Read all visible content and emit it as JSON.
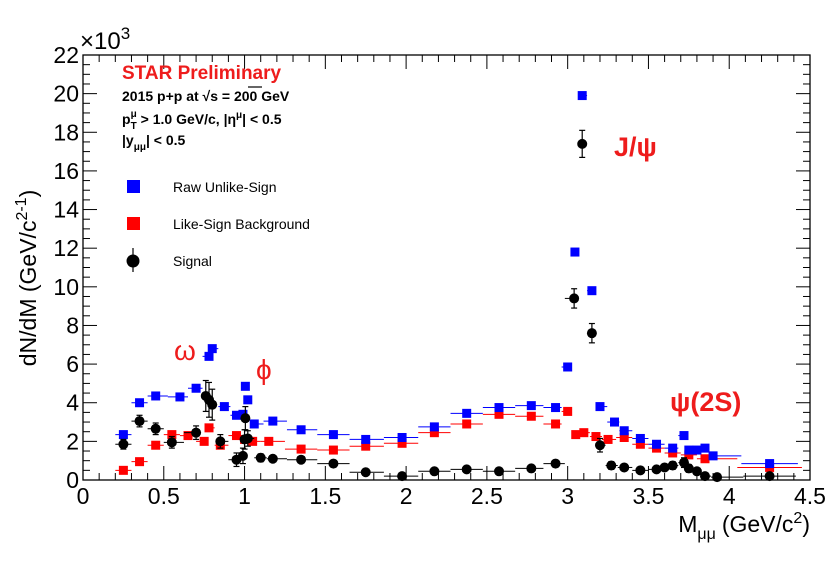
{
  "chart_data": {
    "type": "scatter",
    "xlabel_main": "M",
    "xlabel_sub": "μμ",
    "xlabel_unit": "(GeV/c",
    "xlabel_sup": "2",
    "xlabel_close": ")",
    "ylabel_main": "dN/dM (GeV/c",
    "ylabel_sup": "2",
    "ylabel_exp": "-1",
    "ylabel_close": ")",
    "y_multiplier_base": "×10",
    "y_multiplier_exp": "3",
    "xlim": [
      0,
      4.5
    ],
    "ylim": [
      0,
      22
    ],
    "x_ticks": [
      "0",
      "0.5",
      "1",
      "1.5",
      "2",
      "2.5",
      "3",
      "3.5",
      "4",
      "4.5"
    ],
    "y_ticks": [
      "0",
      "2",
      "4",
      "6",
      "8",
      "10",
      "12",
      "14",
      "16",
      "18",
      "20",
      "22"
    ],
    "annotations": {
      "preliminary": "STAR Preliminary",
      "collision_a": "2015 p+p at ",
      "collision_sqrt": "√s",
      "collision_b": " = 200 GeV",
      "pt_p": "p",
      "pt_sub": "T",
      "pt_sup": "μ",
      "pt_cut": " > 1.0 GeV/c, |η",
      "pt_eta_sup": "μ",
      "pt_cut_end": "| < 0.5",
      "y_open": "|y",
      "y_sub": "μμ",
      "y_cut": "| < 0.5",
      "jpsi": "J/ψ",
      "omega": "ω",
      "phi": "ϕ",
      "psi2s": "ψ(2S)"
    },
    "colors": {
      "raw": "#0000ff",
      "bkg": "#ff0000",
      "signal": "#000000",
      "label": "#ee1c1c"
    },
    "legend_position": "top-left",
    "series": [
      {
        "name": "Raw Unlike-Sign",
        "marker": "square",
        "color": "#0000ff",
        "x": [
          0.25,
          0.35,
          0.45,
          0.6,
          0.7,
          0.78,
          0.8,
          0.875,
          0.95,
          0.99,
          1.005,
          1.02,
          1.06,
          1.175,
          1.35,
          1.55,
          1.75,
          1.975,
          2.175,
          2.375,
          2.575,
          2.775,
          2.925,
          3.0,
          3.045,
          3.09,
          3.15,
          3.2,
          3.29,
          3.35,
          3.45,
          3.55,
          3.65,
          3.72,
          3.75,
          3.8,
          3.85,
          3.9,
          4.25
        ],
        "y": [
          2.35,
          4.0,
          4.35,
          4.3,
          4.75,
          6.4,
          6.8,
          3.8,
          3.35,
          3.4,
          4.85,
          4.15,
          2.9,
          3.05,
          2.6,
          2.35,
          2.1,
          2.2,
          2.75,
          3.45,
          3.75,
          3.85,
          3.75,
          5.85,
          11.8,
          19.9,
          9.8,
          3.8,
          3.0,
          2.55,
          2.15,
          1.85,
          1.65,
          2.3,
          1.55,
          1.55,
          1.65,
          1.25,
          0.85
        ]
      },
      {
        "name": "Like-Sign Background",
        "marker": "square",
        "color": "#ff0000",
        "x": [
          0.25,
          0.35,
          0.45,
          0.55,
          0.65,
          0.75,
          0.78,
          0.85,
          0.95,
          1.0,
          1.05,
          1.15,
          1.35,
          1.55,
          1.75,
          1.975,
          2.175,
          2.375,
          2.575,
          2.775,
          2.925,
          3.0,
          3.05,
          3.1,
          3.175,
          3.25,
          3.35,
          3.45,
          3.55,
          3.65,
          3.75,
          3.85,
          4.25
        ],
        "y": [
          0.5,
          0.95,
          1.8,
          2.35,
          2.3,
          2.0,
          2.7,
          1.8,
          2.3,
          2.1,
          2.0,
          2.0,
          1.6,
          1.55,
          1.75,
          1.9,
          2.45,
          2.9,
          3.4,
          3.3,
          2.9,
          3.55,
          2.35,
          2.45,
          2.25,
          2.1,
          2.2,
          1.85,
          1.65,
          1.4,
          1.3,
          1.1,
          0.65
        ]
      },
      {
        "name": "Signal",
        "marker": "circle",
        "color": "#000000",
        "x": [
          0.25,
          0.35,
          0.45,
          0.55,
          0.7,
          0.76,
          0.78,
          0.8,
          0.85,
          0.95,
          0.99,
          1.0,
          1.005,
          1.02,
          1.1,
          1.175,
          1.35,
          1.55,
          1.75,
          1.975,
          2.175,
          2.375,
          2.575,
          2.775,
          2.925,
          3.04,
          3.09,
          3.15,
          3.2,
          3.27,
          3.35,
          3.45,
          3.55,
          3.6,
          3.65,
          3.72,
          3.75,
          3.8,
          3.85,
          3.925,
          4.25
        ],
        "y": [
          1.85,
          3.05,
          2.65,
          1.95,
          2.45,
          4.35,
          4.15,
          3.9,
          2.0,
          1.05,
          1.25,
          2.1,
          3.2,
          2.15,
          1.15,
          1.1,
          1.05,
          0.85,
          0.4,
          0.2,
          0.45,
          0.55,
          0.45,
          0.6,
          0.85,
          9.4,
          17.4,
          7.6,
          1.8,
          0.75,
          0.65,
          0.5,
          0.55,
          0.65,
          0.75,
          0.9,
          0.6,
          0.45,
          0.2,
          0.15,
          0.2
        ],
        "yerr": [
          0.25,
          0.3,
          0.3,
          0.3,
          0.35,
          0.8,
          0.9,
          0.8,
          0.35,
          0.35,
          0.4,
          0.5,
          0.6,
          0.4,
          0.2,
          0.15,
          0.15,
          0.15,
          0.15,
          0.15,
          0.15,
          0.15,
          0.15,
          0.15,
          0.15,
          0.5,
          0.7,
          0.5,
          0.35,
          0.2,
          0.15,
          0.15,
          0.15,
          0.15,
          0.2,
          0.25,
          0.2,
          0.15,
          0.15,
          0.1,
          0.1
        ]
      }
    ]
  }
}
